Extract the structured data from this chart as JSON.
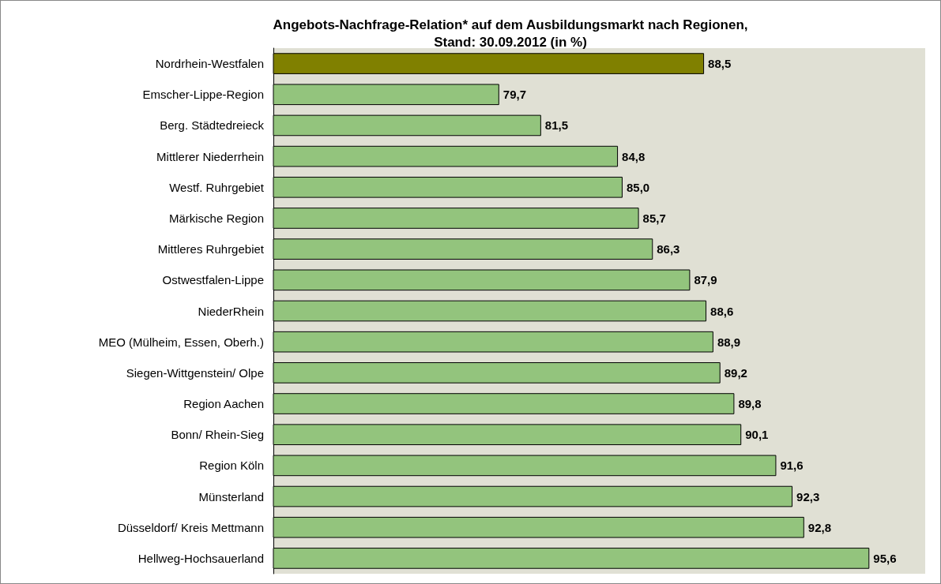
{
  "chart_data": {
    "type": "bar",
    "orientation": "horizontal",
    "title": "Angebots-Nachfrage-Relation* auf dem Ausbildungsmarkt nach Regionen,\nStand: 30.09.2012 (in %)",
    "categories": [
      "Nordrhein-Westfalen",
      "Emscher-Lippe-Region",
      "Berg. Städtedreieck",
      "Mittlerer Niederrhein",
      "Westf. Ruhrgebiet",
      "Märkische Region",
      "Mittleres Ruhrgebiet",
      "Ostwestfalen-Lippe",
      "NiederRhein",
      "MEO (Mülheim, Essen, Oberh.)",
      "Siegen-Wittgenstein/ Olpe",
      "Region Aachen",
      "Bonn/ Rhein-Sieg",
      "Region Köln",
      "Münsterland",
      "Düsseldorf/ Kreis Mettmann",
      "Hellweg-Hochsauerland"
    ],
    "values": [
      88.5,
      79.7,
      81.5,
      84.8,
      85.0,
      85.7,
      86.3,
      87.9,
      88.6,
      88.9,
      89.2,
      89.8,
      90.1,
      91.6,
      92.3,
      92.8,
      95.6
    ],
    "value_labels": [
      "88,5",
      "79,7",
      "81,5",
      "84,8",
      "85,0",
      "85,7",
      "86,3",
      "87,9",
      "88,6",
      "88,9",
      "89,2",
      "89,8",
      "90,1",
      "91,6",
      "92,3",
      "92,8",
      "95,6"
    ],
    "colors": [
      "#808000",
      "#93c47d",
      "#93c47d",
      "#93c47d",
      "#93c47d",
      "#93c47d",
      "#93c47d",
      "#93c47d",
      "#93c47d",
      "#93c47d",
      "#93c47d",
      "#93c47d",
      "#93c47d",
      "#93c47d",
      "#93c47d",
      "#93c47d",
      "#93c47d"
    ],
    "xlim": [
      70,
      98
    ],
    "tick_labels": "y",
    "grid": false
  }
}
